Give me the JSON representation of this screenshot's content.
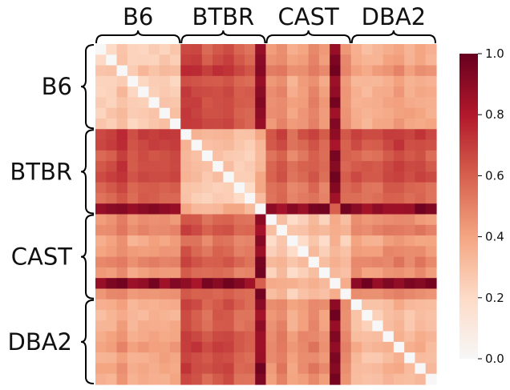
{
  "chart_data": {
    "type": "heatmap",
    "groups": [
      "B6",
      "BTBR",
      "CAST",
      "DBA2"
    ],
    "group_sizes": [
      8,
      8,
      8,
      8
    ],
    "column_group_labels": [
      "B6",
      "BTBR",
      "CAST",
      "DBA2"
    ],
    "row_group_labels": [
      "B6",
      "BTBR",
      "CAST",
      "DBA2"
    ],
    "outlier_index": {
      "BTBR": 7,
      "CAST": 6
    },
    "block_mean_values": [
      [
        0.32,
        0.68,
        0.48,
        0.4
      ],
      [
        0.68,
        0.3,
        0.58,
        0.62
      ],
      [
        0.48,
        0.58,
        0.28,
        0.45
      ],
      [
        0.4,
        0.62,
        0.45,
        0.3
      ]
    ],
    "colormap": "RdBu_r (upper half)",
    "colorbar": {
      "min": 0.0,
      "max": 1.0,
      "ticks": [
        "0.0",
        "0.2",
        "0.4",
        "0.6",
        "0.8",
        "1.0"
      ]
    }
  }
}
